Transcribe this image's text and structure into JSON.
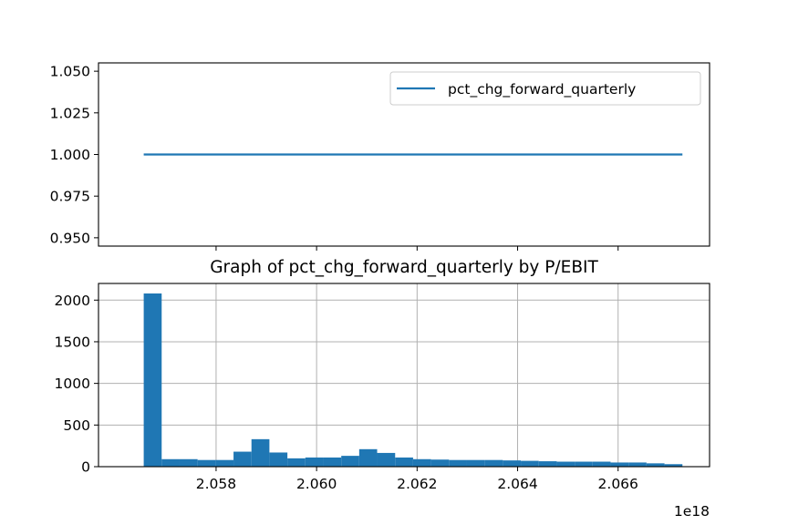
{
  "chart_data": [
    {
      "type": "line",
      "title": "",
      "xlabel": "",
      "ylabel": "",
      "x_range": [
        2.05656e+18,
        2.06728e+18
      ],
      "ylim": [
        0.945,
        1.055
      ],
      "yticks": [
        0.95,
        0.975,
        1.0,
        1.025,
        1.05
      ],
      "ytick_labels": [
        "0.950",
        "0.975",
        "1.000",
        "1.025",
        "1.050"
      ],
      "grid": false,
      "legend_position": "top-right",
      "series": [
        {
          "name": "pct_chg_forward_quarterly",
          "color": "#1f77b4",
          "x": [
            2.05656e+18,
            2.06728e+18
          ],
          "y": [
            1.0,
            1.0
          ]
        }
      ]
    },
    {
      "type": "bar",
      "title": "Graph of pct_chg_forward_quarterly by P/EBIT",
      "xlabel": "",
      "ylabel": "",
      "x_offset_label": "1e18",
      "xlim": [
        2.05566,
        2.06782
      ],
      "xticks": [
        2.058,
        2.06,
        2.062,
        2.064,
        2.066
      ],
      "xtick_labels": [
        "2.058",
        "2.060",
        "2.062",
        "2.064",
        "2.066"
      ],
      "ylim": [
        0,
        2200
      ],
      "yticks": [
        0,
        500,
        1000,
        1500,
        2000
      ],
      "ytick_labels": [
        "0",
        "500",
        "1000",
        "1500",
        "2000"
      ],
      "grid": true,
      "color": "#1f77b4",
      "bin_edges": [
        2.05656,
        2.056917,
        2.057275,
        2.057632,
        2.05799,
        2.058347,
        2.058704,
        2.059061,
        2.059419,
        2.059776,
        2.060133,
        2.060491,
        2.060848,
        2.061205,
        2.061563,
        2.06192,
        2.062277,
        2.062635,
        2.062992,
        2.063349,
        2.063707,
        2.064064,
        2.064421,
        2.064779,
        2.065136,
        2.065493,
        2.06585,
        2.066208,
        2.066565,
        2.066923,
        2.06728
      ],
      "counts": [
        2080,
        90,
        90,
        80,
        80,
        180,
        330,
        170,
        100,
        110,
        110,
        130,
        210,
        165,
        110,
        90,
        85,
        80,
        80,
        80,
        75,
        70,
        65,
        60,
        60,
        60,
        50,
        50,
        40,
        30
      ]
    }
  ]
}
